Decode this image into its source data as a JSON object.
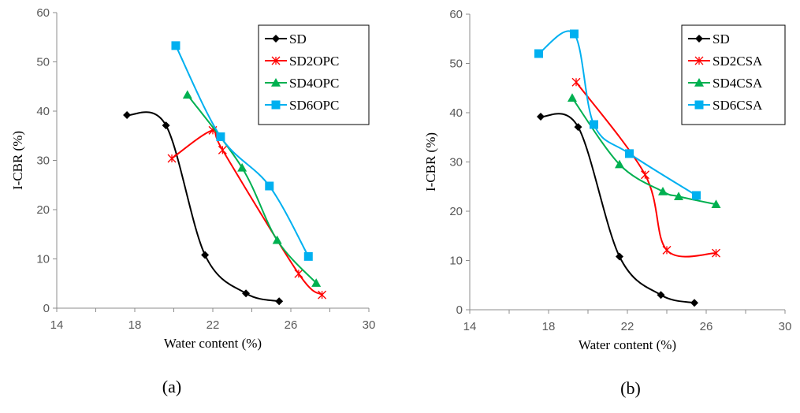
{
  "chart_data": [
    {
      "type": "line",
      "caption": "(a)",
      "xlabel": "Water content (%)",
      "ylabel": "I-CBR (%)",
      "xlim": [
        14,
        30
      ],
      "ylim": [
        0,
        60
      ],
      "xticks": [
        "14",
        "18",
        "22",
        "26",
        "30"
      ],
      "yticks": [
        "0",
        "10",
        "20",
        "30",
        "40",
        "50",
        "60"
      ],
      "legend_position": "top-right",
      "series": [
        {
          "name": "SD",
          "color": "#000000",
          "marker": "diamond",
          "x": [
            17.6,
            19.6,
            21.6,
            23.7,
            25.4
          ],
          "y": [
            39.2,
            37.1,
            10.8,
            3.0,
            1.4
          ]
        },
        {
          "name": "SD2OPC",
          "color": "#ff0000",
          "marker": "star",
          "x": [
            19.9,
            22.0,
            22.5,
            26.4,
            27.6
          ],
          "y": [
            30.4,
            36.1,
            32.1,
            7.0,
            2.7
          ]
        },
        {
          "name": "SD4OPC",
          "color": "#00b050",
          "marker": "triangle",
          "x": [
            20.7,
            23.5,
            25.3,
            27.3
          ],
          "y": [
            43.3,
            28.5,
            13.8,
            5.1
          ]
        },
        {
          "name": "SD6OPC",
          "color": "#00b0f0",
          "marker": "square",
          "x": [
            20.1,
            22.4,
            24.9,
            26.9
          ],
          "y": [
            53.3,
            34.8,
            24.8,
            10.5
          ]
        }
      ]
    },
    {
      "type": "line",
      "caption": "(b)",
      "xlabel": "Water content (%)",
      "ylabel": "I-CBR (%)",
      "xlim": [
        14,
        30
      ],
      "ylim": [
        0,
        60
      ],
      "xticks": [
        "14",
        "18",
        "22",
        "26",
        "30"
      ],
      "yticks": [
        "0",
        "10",
        "20",
        "30",
        "40",
        "50",
        "60"
      ],
      "legend_position": "top-right",
      "series": [
        {
          "name": "SD",
          "color": "#000000",
          "marker": "diamond",
          "x": [
            17.6,
            19.5,
            21.6,
            23.7,
            25.4
          ],
          "y": [
            39.2,
            37.1,
            10.8,
            3.0,
            1.4
          ]
        },
        {
          "name": "SD2CSA",
          "color": "#ff0000",
          "marker": "star",
          "x": [
            19.4,
            22.9,
            24.0,
            26.5
          ],
          "y": [
            46.2,
            27.4,
            12.1,
            11.5
          ]
        },
        {
          "name": "SD4CSA",
          "color": "#00b050",
          "marker": "triangle",
          "x": [
            19.2,
            21.6,
            23.8,
            24.6,
            26.5
          ],
          "y": [
            43.0,
            29.5,
            24.0,
            23.0,
            21.4
          ]
        },
        {
          "name": "SD6CSA",
          "color": "#00b0f0",
          "marker": "square",
          "x": [
            17.5,
            19.3,
            20.3,
            22.1,
            25.5
          ],
          "y": [
            52.0,
            56.0,
            37.6,
            31.7,
            23.2
          ]
        }
      ]
    }
  ]
}
